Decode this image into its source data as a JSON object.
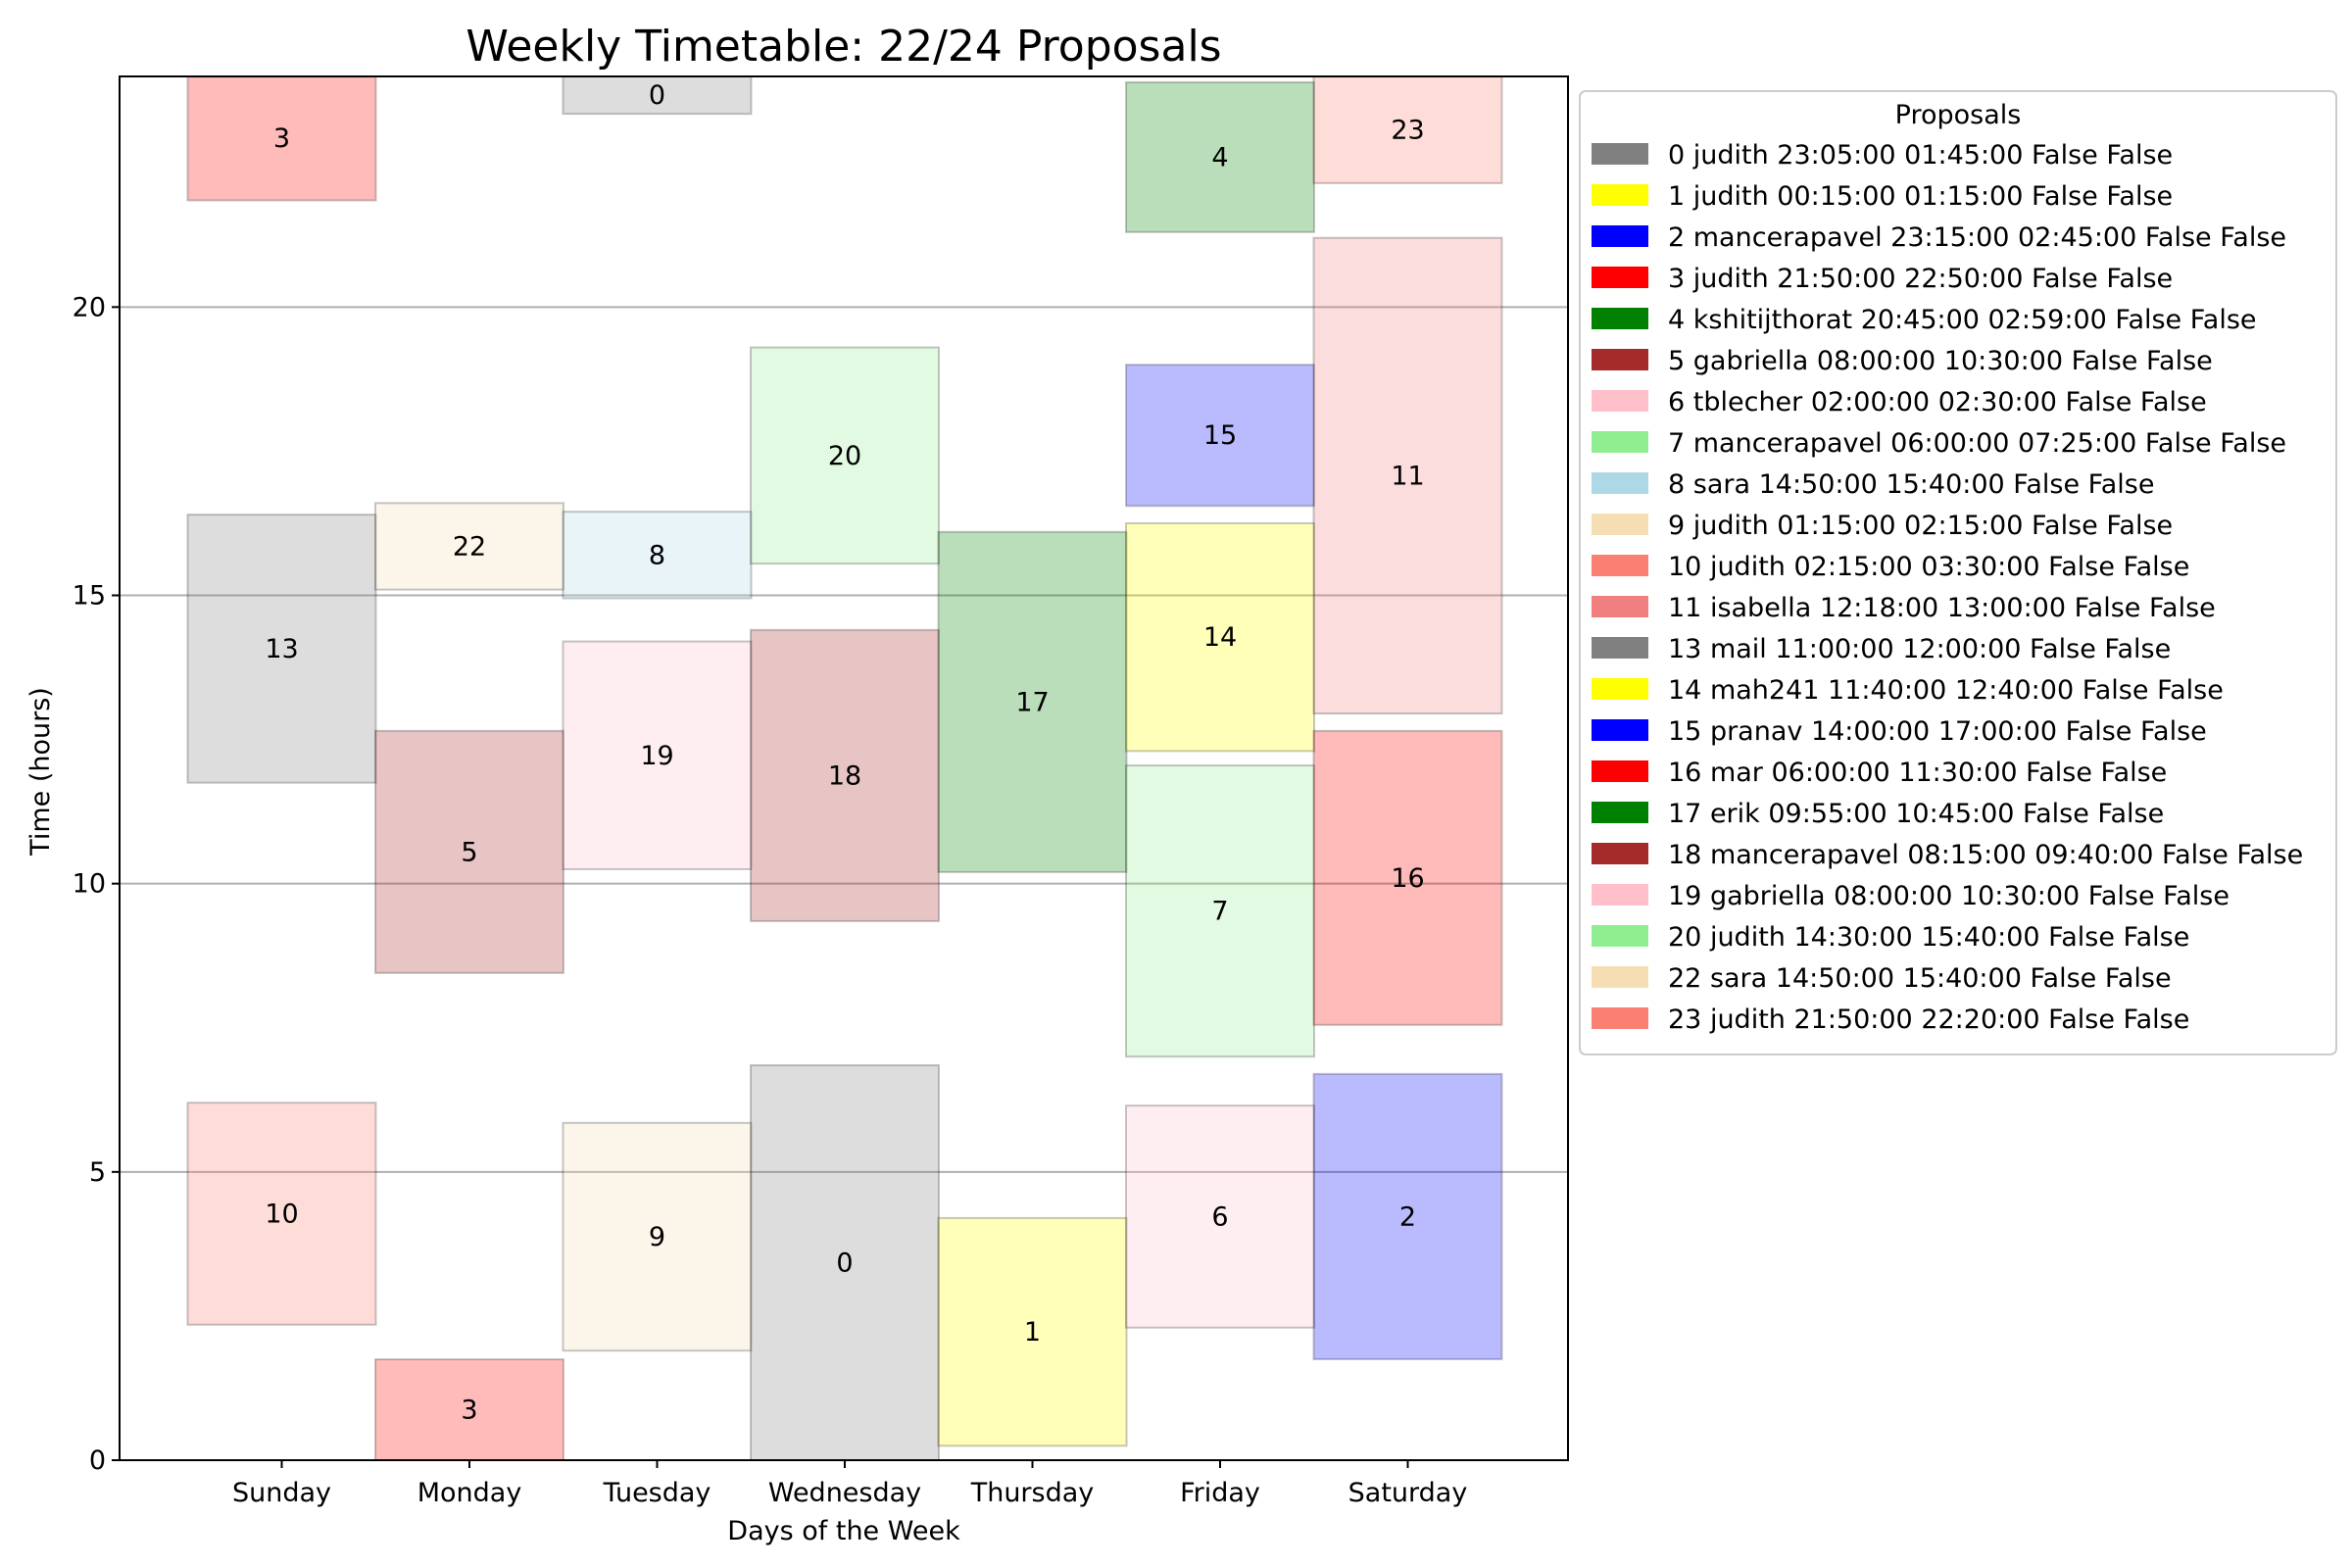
{
  "chart_data": {
    "type": "bar",
    "title": "Weekly Timetable: 22/24 Proposals",
    "xlabel": "Days of the Week",
    "ylabel": "Time (hours)",
    "categories": [
      "Sunday",
      "Monday",
      "Tuesday",
      "Wednesday",
      "Thursday",
      "Friday",
      "Saturday"
    ],
    "ylim": [
      0,
      24
    ],
    "yticks": [
      0,
      5,
      10,
      15,
      20
    ],
    "grid": "horizontal",
    "legend_title": "Proposals",
    "legend_position": "outside-right",
    "legend": [
      {
        "label": "0 judith 23:05:00 01:45:00 False False",
        "color": "#808080"
      },
      {
        "label": "1 judith 00:15:00 01:15:00 False False",
        "color": "#ffff00"
      },
      {
        "label": "2 mancerapavel 23:15:00 02:45:00 False False",
        "color": "#0000ff"
      },
      {
        "label": "3 judith 21:50:00 22:50:00 False False",
        "color": "#ff0000"
      },
      {
        "label": "4 kshitijthorat 20:45:00 02:59:00 False False",
        "color": "#008000"
      },
      {
        "label": "5 gabriella 08:00:00 10:30:00 False False",
        "color": "#a52a2a"
      },
      {
        "label": "6 tblecher 02:00:00 02:30:00 False False",
        "color": "#ffc0cb"
      },
      {
        "label": "7 mancerapavel 06:00:00 07:25:00 False False",
        "color": "#90ee90"
      },
      {
        "label": "8 sara 14:50:00 15:40:00 False False",
        "color": "#add8e6"
      },
      {
        "label": "9 judith 01:15:00 02:15:00 False False",
        "color": "#f5deb3"
      },
      {
        "label": "10 judith 02:15:00 03:30:00 False False",
        "color": "#fa8072"
      },
      {
        "label": "11 isabella 12:18:00 13:00:00 False False",
        "color": "#f08080"
      },
      {
        "label": "13 mail 11:00:00 12:00:00 False False",
        "color": "#808080"
      },
      {
        "label": "14 mah241 11:40:00 12:40:00 False False",
        "color": "#ffff00"
      },
      {
        "label": "15 pranav 14:00:00 17:00:00 False False",
        "color": "#0000ff"
      },
      {
        "label": "16 mar 06:00:00 11:30:00 False False",
        "color": "#ff0000"
      },
      {
        "label": "17 erik 09:55:00 10:45:00 False False",
        "color": "#008000"
      },
      {
        "label": "18 mancerapavel 08:15:00 09:40:00 False False",
        "color": "#a52a2a"
      },
      {
        "label": "19 gabriella 08:00:00 10:30:00 False False",
        "color": "#ffc0cb"
      },
      {
        "label": "20 judith 14:30:00 15:40:00 False False",
        "color": "#90ee90"
      },
      {
        "label": "22 sara 14:50:00 15:40:00 False False",
        "color": "#f5deb3"
      },
      {
        "label": "23 judith 21:50:00 22:20:00 False False",
        "color": "#fa8072"
      }
    ],
    "blocks": [
      {
        "id": "3",
        "day": "Sunday",
        "start": 21.85,
        "end": 24.0,
        "color": "#ff0000"
      },
      {
        "id": "13",
        "day": "Sunday",
        "start": 11.75,
        "end": 16.4,
        "color": "#808080"
      },
      {
        "id": "10",
        "day": "Sunday",
        "start": 2.35,
        "end": 6.2,
        "color": "#fa8072"
      },
      {
        "id": "22",
        "day": "Monday",
        "start": 15.1,
        "end": 16.6,
        "color": "#f5deb3"
      },
      {
        "id": "5",
        "day": "Monday",
        "start": 8.45,
        "end": 12.65,
        "color": "#a52a2a"
      },
      {
        "id": "3",
        "day": "Monday",
        "start": 0.0,
        "end": 1.75,
        "color": "#ff0000"
      },
      {
        "id": "0",
        "day": "Tuesday",
        "start": 23.35,
        "end": 24.0,
        "color": "#808080"
      },
      {
        "id": "8",
        "day": "Tuesday",
        "start": 14.95,
        "end": 16.45,
        "color": "#add8e6"
      },
      {
        "id": "19",
        "day": "Tuesday",
        "start": 10.25,
        "end": 14.2,
        "color": "#ffc0cb"
      },
      {
        "id": "9",
        "day": "Tuesday",
        "start": 1.9,
        "end": 5.85,
        "color": "#f5deb3"
      },
      {
        "id": "20",
        "day": "Wednesday",
        "start": 15.55,
        "end": 19.3,
        "color": "#90ee90"
      },
      {
        "id": "18",
        "day": "Wednesday",
        "start": 9.35,
        "end": 14.4,
        "color": "#a52a2a"
      },
      {
        "id": "0",
        "day": "Wednesday",
        "start": 0.0,
        "end": 6.85,
        "color": "#808080"
      },
      {
        "id": "17",
        "day": "Thursday",
        "start": 10.2,
        "end": 16.1,
        "color": "#008000"
      },
      {
        "id": "1",
        "day": "Thursday",
        "start": 0.25,
        "end": 4.2,
        "color": "#ffff00"
      },
      {
        "id": "4",
        "day": "Friday",
        "start": 21.3,
        "end": 23.9,
        "color": "#008000"
      },
      {
        "id": "15",
        "day": "Friday",
        "start": 16.55,
        "end": 19.0,
        "color": "#0000ff"
      },
      {
        "id": "14",
        "day": "Friday",
        "start": 12.3,
        "end": 16.25,
        "color": "#ffff00"
      },
      {
        "id": "7",
        "day": "Friday",
        "start": 7.0,
        "end": 12.05,
        "color": "#90ee90"
      },
      {
        "id": "6",
        "day": "Friday",
        "start": 2.3,
        "end": 6.15,
        "color": "#ffc0cb"
      },
      {
        "id": "23",
        "day": "Saturday",
        "start": 22.15,
        "end": 24.0,
        "color": "#fa8072"
      },
      {
        "id": "11",
        "day": "Saturday",
        "start": 12.95,
        "end": 21.2,
        "color": "#f08080"
      },
      {
        "id": "16",
        "day": "Saturday",
        "start": 7.55,
        "end": 12.65,
        "color": "#ff0000"
      },
      {
        "id": "2",
        "day": "Saturday",
        "start": 1.75,
        "end": 6.7,
        "color": "#0000ff"
      }
    ]
  }
}
